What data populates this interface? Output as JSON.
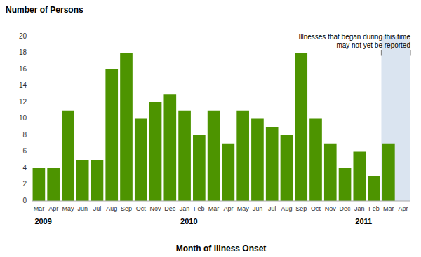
{
  "chart_data": {
    "type": "bar",
    "y_label": "Number of Persons",
    "x_label": "Month of Illness Onset",
    "categories": [
      "Mar",
      "Apr",
      "May",
      "Jun",
      "Jul",
      "Aug",
      "Sep",
      "Oct",
      "Nov",
      "Dec",
      "Jan",
      "Feb",
      "Mar",
      "Apr",
      "May",
      "Jun",
      "Jul",
      "Aug",
      "Sep",
      "Oct",
      "Nov",
      "Dec",
      "Jan",
      "Feb",
      "Mar",
      "Apr"
    ],
    "values": [
      4,
      4,
      11,
      5,
      5,
      16,
      18,
      10,
      12,
      13,
      11,
      8,
      11,
      7,
      11,
      10,
      9,
      8,
      18,
      10,
      7,
      4,
      6,
      3,
      7,
      0
    ],
    "color": "#4d9400",
    "year_labels": [
      {
        "year": "2009",
        "index": 0
      },
      {
        "year": "2010",
        "index": 10
      },
      {
        "year": "2011",
        "index": 22
      }
    ],
    "shaded_region": {
      "start": 24,
      "color": "#dae4f0"
    },
    "annotation": "Illnesses that began during this time\nmay not yet be reported",
    "bracket_y": 18.0,
    "ylim": [
      0,
      20
    ],
    "yticks": [
      0,
      2,
      4,
      6,
      8,
      10,
      12,
      14,
      16,
      18,
      20
    ],
    "grid": false
  }
}
